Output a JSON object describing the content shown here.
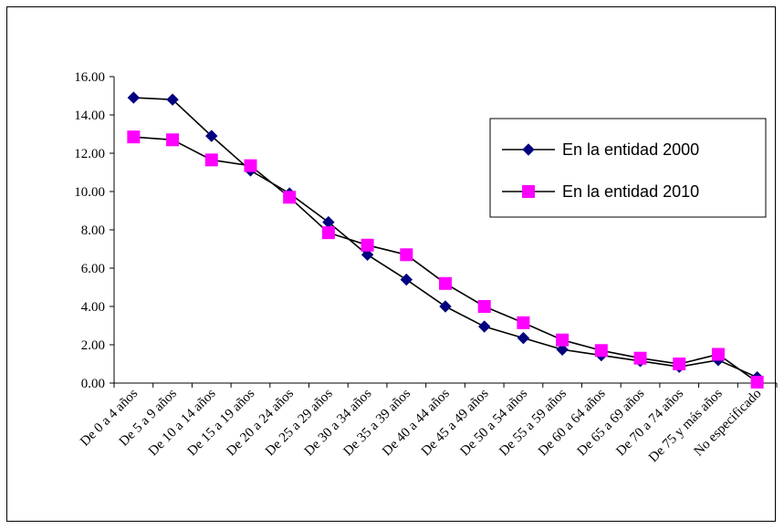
{
  "chart_data": {
    "type": "line",
    "title": "",
    "xlabel": "",
    "ylabel": "",
    "ylim": [
      0,
      16
    ],
    "yticks": [
      "0.00",
      "2.00",
      "4.00",
      "6.00",
      "8.00",
      "10.00",
      "12.00",
      "14.00",
      "16.00"
    ],
    "grid": false,
    "legend_position": "right",
    "categories": [
      "De 0 a 4 años",
      "De 5 a 9 años",
      "De 10 a 14 años",
      "De 15 a 19 años",
      "De 20 a 24 años",
      "De 25 a 29 años",
      "De 30 a 34 años",
      "De 35 a 39 años",
      "De 40 a 44 años",
      "De 45 a 49 años",
      "De 50 a 54 años",
      "De 55 a 59 años",
      "De 60 a 64 años",
      "De 65 a 69 años",
      "De 70 a 74 años",
      "De 75 y más años",
      "No especificado"
    ],
    "series": [
      {
        "name": "En la entidad 2000",
        "color": "#000080",
        "marker": "diamond",
        "values": [
          14.9,
          14.8,
          12.9,
          11.1,
          9.9,
          8.4,
          6.7,
          5.4,
          4.0,
          2.95,
          2.35,
          1.75,
          1.45,
          1.15,
          0.85,
          1.2,
          0.3
        ]
      },
      {
        "name": "En la entidad 2010",
        "color": "#ff00ff",
        "marker": "square",
        "values": [
          12.85,
          12.7,
          11.65,
          11.35,
          9.7,
          7.85,
          7.2,
          6.7,
          5.2,
          4.0,
          3.15,
          2.25,
          1.7,
          1.3,
          1.0,
          1.5,
          0.05
        ]
      }
    ]
  }
}
